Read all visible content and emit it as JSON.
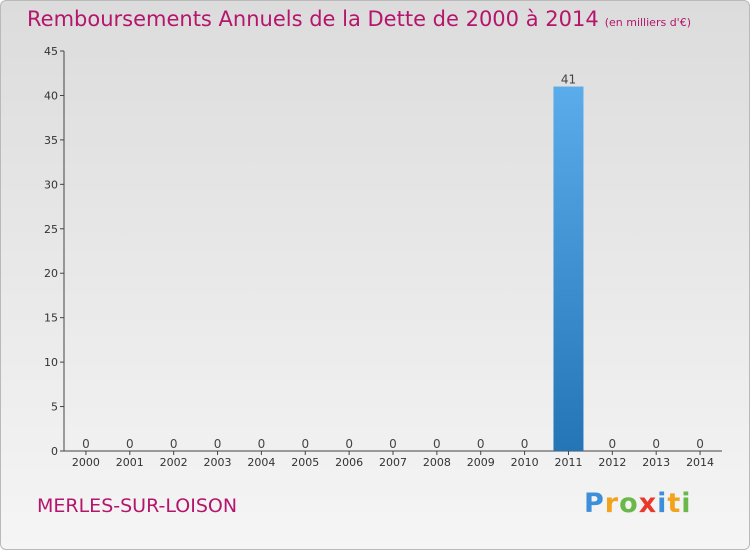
{
  "chart_data": {
    "type": "bar",
    "title": "Remboursements Annuels de la Dette de 2000 à 2014",
    "subtitle": "(en milliers d'€)",
    "categories": [
      "2000",
      "2001",
      "2002",
      "2003",
      "2004",
      "2005",
      "2006",
      "2007",
      "2008",
      "2009",
      "2010",
      "2011",
      "2012",
      "2013",
      "2014"
    ],
    "values": [
      0,
      0,
      0,
      0,
      0,
      0,
      0,
      0,
      0,
      0,
      0,
      41,
      0,
      0,
      0
    ],
    "data_labels": [
      "0",
      "0",
      "0",
      "0",
      "0",
      "0",
      "0",
      "0",
      "0",
      "0",
      "0",
      "41",
      "0",
      "0",
      "0"
    ],
    "ylim": [
      0,
      45
    ],
    "yticks": [
      0,
      5,
      10,
      15,
      20,
      25,
      30,
      35,
      40,
      45
    ],
    "xlabel": "",
    "ylabel": "",
    "grid": false,
    "colors": {
      "bar_top": "#5aacea",
      "bar_bottom": "#2475b6",
      "text": "#b5156c"
    }
  },
  "footer": {
    "commune": "MERLES-SUR-LOISON",
    "logo": {
      "p": "P",
      "r": "r",
      "o": "o",
      "x": "x",
      "i1": "i",
      "t": "t",
      "i2": "i"
    }
  }
}
